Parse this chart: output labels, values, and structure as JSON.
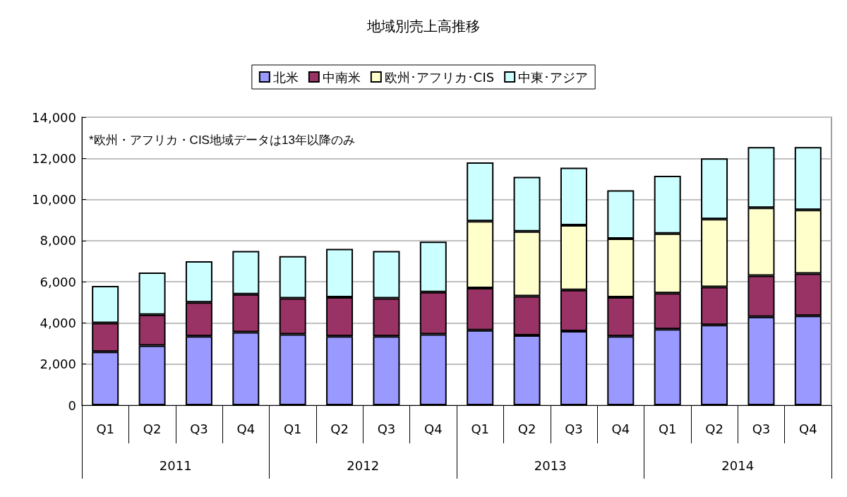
{
  "chart_data": {
    "type": "bar",
    "title": "地域別売上高推移",
    "stacked": true,
    "legend": "top",
    "grid": "y",
    "categories": [
      "Q1",
      "Q2",
      "Q3",
      "Q4",
      "Q1",
      "Q2",
      "Q3",
      "Q4",
      "Q1",
      "Q2",
      "Q3",
      "Q4",
      "Q1",
      "Q2",
      "Q3",
      "Q4"
    ],
    "series": [
      {
        "name": "北米",
        "color": "#9999ff",
        "values": [
          2600,
          2900,
          3350,
          3550,
          3450,
          3350,
          3350,
          3450,
          3650,
          3400,
          3600,
          3350,
          3700,
          3900,
          4300,
          4350
        ]
      },
      {
        "name": "中南米",
        "color": "#993366",
        "values": [
          1400,
          1500,
          1650,
          1850,
          1750,
          1900,
          1850,
          2050,
          2050,
          1900,
          2000,
          1900,
          1750,
          1850,
          2000,
          2050
        ]
      },
      {
        "name": "欧州･アフリカ･CIS",
        "color": "#ffffcc",
        "values": [
          null,
          null,
          null,
          null,
          null,
          null,
          null,
          null,
          3250,
          3150,
          3150,
          2850,
          2900,
          3300,
          3300,
          3100
        ]
      },
      {
        "name": "中東･アジア",
        "color": "#ccffff",
        "values": [
          1800,
          2050,
          2000,
          2100,
          2050,
          2350,
          2300,
          2450,
          2850,
          2650,
          2800,
          2350,
          2800,
          2950,
          2950,
          3050
        ]
      }
    ],
    "ylim": [
      0,
      14000
    ],
    "yticks": [
      0,
      {
        "value": 2000,
        "label": "2,000"
      },
      {
        "value": 4000,
        "label": "4,000"
      },
      {
        "value": 6000,
        "label": "6,000"
      },
      {
        "value": 8000,
        "label": "8,000"
      },
      {
        "value": 10000,
        "label": "10,000"
      },
      {
        "value": 12000,
        "label": "12,000"
      },
      {
        "value": 14000,
        "label": "14,000"
      }
    ],
    "annotations": [
      "*欧州・アフリカ・CIS地域データは13年以降のみ",
      "2011",
      "2012",
      "2013",
      "2014"
    ]
  }
}
